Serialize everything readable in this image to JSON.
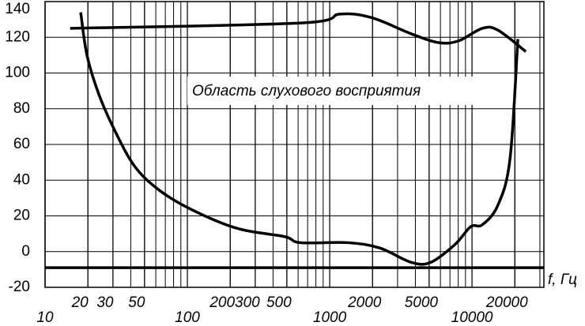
{
  "chart_data": {
    "type": "line",
    "annotation": "Область слухового восприятия",
    "x_label": "f, Гц",
    "log_x": true,
    "grid": true,
    "xlim": [
      10,
      32000
    ],
    "ylim": [
      -20,
      140
    ],
    "xticks": [
      10,
      20,
      30,
      50,
      100,
      200,
      300,
      500,
      1000,
      2000,
      5000,
      10000,
      20000
    ],
    "yticks": [
      -20,
      0,
      20,
      40,
      60,
      80,
      100,
      120,
      140
    ],
    "series": [
      {
        "color": "#000000",
        "x": [
          15,
          622,
          1180,
          1970,
          3730,
          5840,
          8050,
          11800,
          15200,
          23900
        ],
        "values": [
          125,
          128,
          133,
          131,
          122,
          117,
          118,
          125,
          124,
          112
        ]
      },
      {
        "color": "#000000",
        "x": [
          17.8,
          19.7,
          23.9,
          30.8,
          42.4,
          62,
          104,
          224,
          482,
          622,
          1340,
          2250,
          3730,
          5130,
          7600,
          9800,
          11800,
          15200,
          18500,
          21000
        ],
        "values": [
          134,
          110,
          88,
          68,
          48,
          35,
          24,
          13,
          8.4,
          5,
          5,
          2,
          -6,
          -6,
          4,
          14,
          15,
          26,
          52,
          119
        ]
      },
      {
        "color": "#000000",
        "x": [
          10,
          32000
        ],
        "values": [
          -9,
          -9
        ]
      }
    ]
  }
}
